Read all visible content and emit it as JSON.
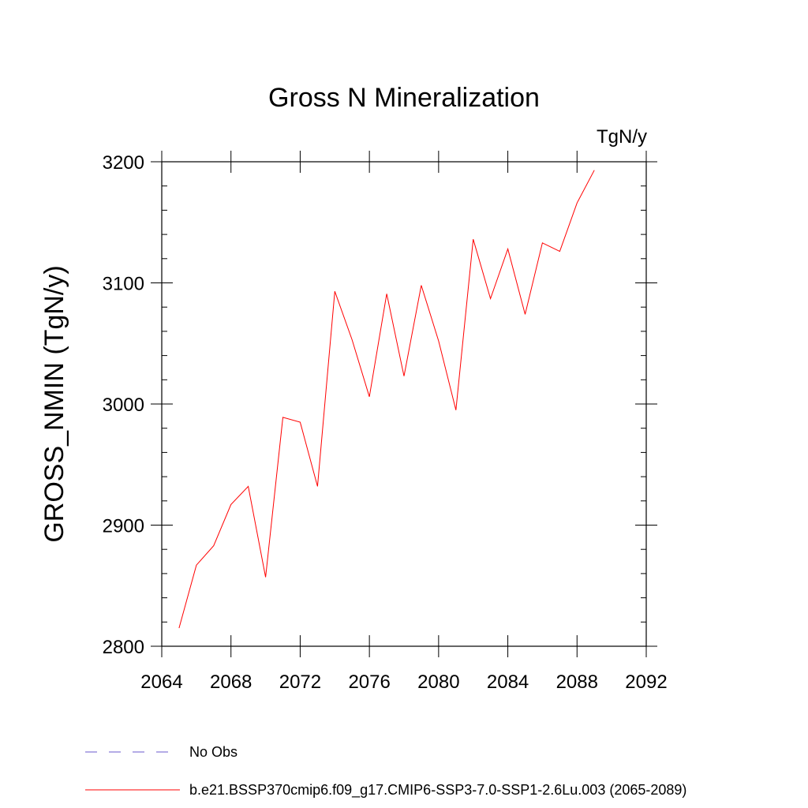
{
  "chart_data": {
    "type": "line",
    "title": "Gross N Mineralization",
    "units": "TgN/y",
    "ylabel": "GROSS_NMIN  (TgN/y)",
    "xlabel": "",
    "xlim": [
      2064,
      2092
    ],
    "ylim": [
      2800,
      3200
    ],
    "xticks": [
      2064,
      2068,
      2072,
      2076,
      2080,
      2084,
      2088,
      2092
    ],
    "yticks": [
      2800,
      2900,
      3000,
      3100,
      3200
    ],
    "grid": false,
    "series": [
      {
        "name": "b.e21.BSSP370cmip6.f09_g17.CMIP6-SSP3-7.0-SSP1-2.6Lu.003 (2065-2089)",
        "color": "#ff0000",
        "x": [
          2065,
          2066,
          2067,
          2068,
          2069,
          2070,
          2071,
          2072,
          2073,
          2074,
          2075,
          2076,
          2077,
          2078,
          2079,
          2080,
          2081,
          2082,
          2083,
          2084,
          2085,
          2086,
          2087,
          2088,
          2089
        ],
        "y": [
          2815,
          2867,
          2883,
          2917,
          2932,
          2857,
          2989,
          2985,
          2932,
          3093,
          3053,
          3006,
          3091,
          3023,
          3098,
          3052,
          2995,
          3136,
          3087,
          3128,
          3074,
          3133,
          3126,
          3166,
          3193
        ]
      }
    ],
    "legend": [
      {
        "label": "No Obs",
        "style": "dashed",
        "color": "#6a5acd"
      },
      {
        "label": "b.e21.BSSP370cmip6.f09_g17.CMIP6-SSP3-7.0-SSP1-2.6Lu.003 (2065-2089)",
        "style": "solid",
        "color": "#ff0000"
      }
    ],
    "legend_position": "bottom-left"
  }
}
